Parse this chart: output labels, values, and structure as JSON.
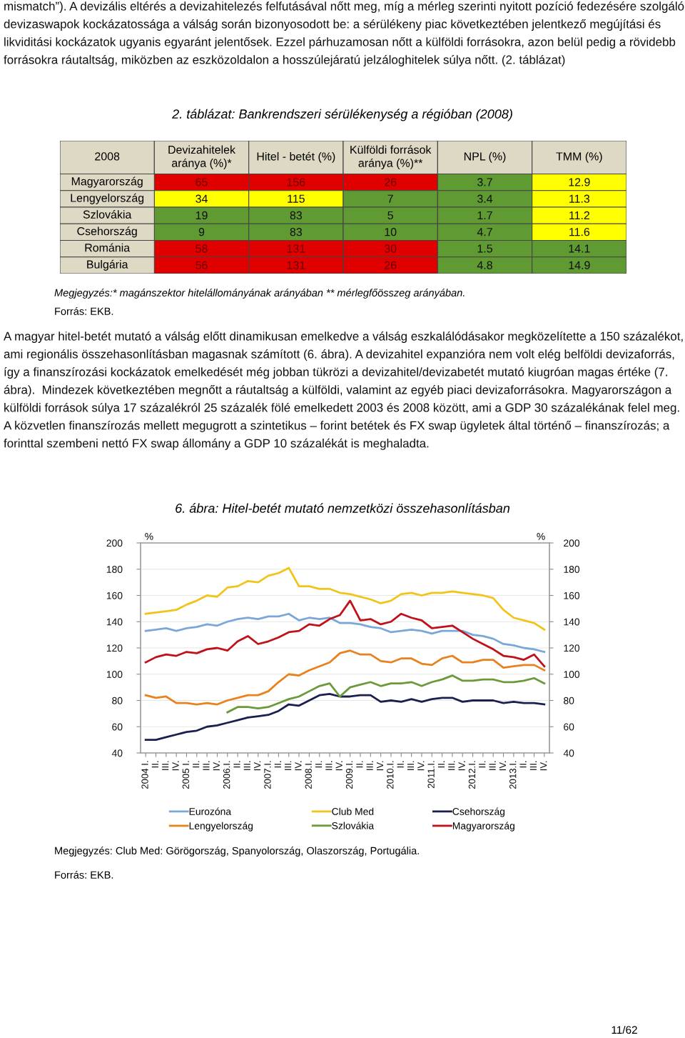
{
  "chart_data": [
    {
      "type": "other",
      "annotations": [
        "mismatch”). A devizális eltérés a devizahitelezés felfutásával nőtt meg, míg a mérleg szerinti nyitott pozíció fedezésére szolgáló devizaswapok kockázatossága a válság során bizonyosodott be: a sérülékeny piac következtében jelentkező megújítási és likviditási kockázatok ugyanis egyaránt jelentősek. Ezzel párhuzamosan nőtt a külföldi forrásokra, azon belül pedig a rövidebb forrásokra ráutaltság, miközben az eszközoldalon a hosszúlejáratú jelzáloghitelek súlya nőtt. (2. táblázat)"
      ]
    },
    {
      "type": "heatmap",
      "title": "2. táblázat: Bankrendszeri sérülékenység a régióban (2008)",
      "categories": [
        "Devizahitelek\naránya (%)*",
        "Hitel - betét (%)",
        "Külföldi források\naránya (%)**",
        "NPL (%)",
        "TMM (%)"
      ],
      "y_categories": [
        "Magyarország",
        "Lengyelország",
        "Szlovákia",
        "Csehország",
        "Románia",
        "Bulgária"
      ],
      "cells": [
        [
          65,
          156,
          26,
          3.7,
          12.9
        ],
        [
          34,
          115,
          7,
          3.4,
          11.3
        ],
        [
          19,
          83,
          5,
          1.7,
          11.2
        ],
        [
          9,
          83,
          10,
          4.7,
          11.6
        ],
        [
          58,
          131,
          30,
          1.5,
          14.1
        ],
        [
          56,
          131,
          26,
          4.8,
          14.9
        ]
      ],
      "colors": [
        [
          "#e00000",
          "#e00000",
          "#e00000",
          "#5f9a32",
          "#ffff00"
        ],
        [
          "#ffff00",
          "#ffff00",
          "#5f9a32",
          "#5f9a32",
          "#ffff00"
        ],
        [
          "#5f9a32",
          "#5f9a32",
          "#5f9a32",
          "#5f9a32",
          "#ffff00"
        ],
        [
          "#5f9a32",
          "#5f9a32",
          "#5f9a32",
          "#5f9a32",
          "#ffff00"
        ],
        [
          "#e00000",
          "#e00000",
          "#e00000",
          "#5f9a32",
          "#5f9a32"
        ],
        [
          "#e00000",
          "#e00000",
          "#e00000",
          "#5f9a32",
          "#5f9a32"
        ]
      ],
      "data_labels": true,
      "annotations": [
        "2008",
        "Megjegyzés:* magánszektor hitelállományának arányában ** mérlegfőösszeg arányában.",
        "Forrás: EKB."
      ]
    },
    {
      "type": "other",
      "annotations": [
        "A magyar hitel-betét mutató a válság előtt dinamikusan emelkedve a válság eszkalálódásakor megközelítette a 150 százalékot, ami regionális összehasonlításban magasnak számított (6. ábra). A devizahitel expanzióra nem volt elég belföldi devizaforrás, így a finanszírozási kockázatok emelkedését még jobban tükrözi a devizahitel/devizabetét mutató kiugróan magas értéke (7. ábra).  Mindezek következtében megnőtt a ráutaltság a külföldi, valamint az egyéb piaci devizaforrásokra. Magyarországon a külföldi források súlya 17 százalékról 25 százalék fölé emelkedett 2003 és 2008 között, ami a GDP 30 százalékának felel meg. A közvetlen finanszírozás mellett megugrott a szintetikus – forint betétek és FX swap ügyletek által történő – finanszírozás; a forinttal szembeni nettó FX swap állomány a GDP 10 százalékát is meghaladta."
      ]
    },
    {
      "type": "line",
      "title": "6. ábra: Hitel-betét mutató nemzetközi összehasonlításban",
      "ylabel": "%",
      "y2label": "%",
      "categories": [
        "2004 I.",
        "II.",
        "III.",
        "IV.",
        "2005 I.",
        "II.",
        "III.",
        "IV.",
        "2006.I.",
        "II.",
        "III.",
        "IV.",
        "2007.I.",
        "II.",
        "III.",
        "IV.",
        "2008.I.",
        "II.",
        "III.",
        "IV.",
        "2009.I.",
        "II.",
        "III.",
        "IV.",
        "2010.I.",
        "II.",
        "III.",
        "IV.",
        "2011.I.",
        "II.",
        "III.",
        "IV.",
        "2012.I.",
        "II.",
        "III.",
        "IV.",
        "2013.I.",
        "II.",
        "III.",
        "IV."
      ],
      "ylim": [
        40,
        200
      ],
      "yticks": [
        40,
        60,
        80,
        100,
        120,
        140,
        160,
        180,
        200
      ],
      "y2lim": [
        40,
        200
      ],
      "y2ticks": [
        40,
        60,
        80,
        100,
        120,
        140,
        160,
        180,
        200
      ],
      "grid": "y",
      "legend": "bottom",
      "marker": "none",
      "line_style": "solid",
      "series": [
        {
          "name": "Eurozóna",
          "color": "#7ba7d8",
          "values": [
            133,
            134,
            135,
            133,
            135,
            136,
            138,
            137,
            140,
            142,
            143,
            142,
            144,
            144,
            146,
            141,
            143,
            142,
            143,
            139,
            139,
            138,
            136,
            135,
            132,
            133,
            134,
            133,
            131,
            133,
            133,
            133,
            130,
            129,
            127,
            123,
            122,
            120,
            119,
            117
          ]
        },
        {
          "name": "Club Med",
          "color": "#f2c318",
          "values": [
            146,
            147,
            148,
            149,
            153,
            156,
            160,
            159,
            166,
            167,
            171,
            170,
            175,
            177,
            181,
            167,
            167,
            165,
            165,
            162,
            161,
            159,
            157,
            154,
            156,
            161,
            162,
            160,
            162,
            162,
            163,
            162,
            161,
            160,
            158,
            149,
            143,
            141,
            139,
            134
          ]
        },
        {
          "name": "Csehország",
          "color": "#1a1f4f",
          "values": [
            50,
            50,
            52,
            54,
            56,
            57,
            60,
            61,
            63,
            65,
            67,
            68,
            69,
            72,
            77,
            76,
            80,
            84,
            85,
            83,
            83,
            84,
            84,
            79,
            80,
            79,
            81,
            79,
            81,
            82,
            82,
            79,
            80,
            80,
            80,
            78,
            79,
            78,
            78,
            77
          ]
        },
        {
          "name": "Lengyelország",
          "color": "#e8821e",
          "values": [
            84,
            82,
            83,
            78,
            78,
            77,
            78,
            77,
            80,
            82,
            84,
            84,
            87,
            94,
            100,
            99,
            103,
            106,
            109,
            116,
            118,
            115,
            115,
            110,
            109,
            112,
            112,
            108,
            107,
            112,
            114,
            109,
            109,
            111,
            111,
            105,
            106,
            107,
            107,
            103
          ]
        },
        {
          "name": "Szlovákia",
          "color": "#6a9a3a",
          "values": [
            null,
            null,
            null,
            null,
            null,
            null,
            null,
            null,
            71,
            75,
            75,
            74,
            75,
            78,
            81,
            83,
            87,
            91,
            93,
            83,
            90,
            92,
            94,
            91,
            93,
            93,
            94,
            91,
            94,
            96,
            99,
            95,
            95,
            96,
            96,
            94,
            94,
            95,
            97,
            93
          ]
        },
        {
          "name": "Magyarország",
          "color": "#c0101a",
          "values": [
            109,
            113,
            115,
            114,
            117,
            116,
            119,
            120,
            118,
            125,
            129,
            123,
            125,
            128,
            132,
            133,
            138,
            137,
            142,
            145,
            156,
            141,
            142,
            138,
            140,
            146,
            143,
            141,
            135,
            136,
            137,
            132,
            127,
            123,
            119,
            114,
            113,
            111,
            115,
            106
          ]
        }
      ],
      "annotations": [
        "Megjegyzés: Club Med: Görögország, Spanyolország, Olaszország, Portugália.",
        "Forrás: EKB.",
        "11/62"
      ]
    }
  ]
}
